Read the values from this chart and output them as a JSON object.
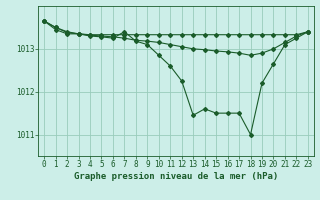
{
  "title": "Graphe pression niveau de la mer (hPa)",
  "background_color": "#cceee8",
  "grid_color": "#99ccbb",
  "line_color": "#1a5c2a",
  "series": [
    {
      "x": [
        0,
        1,
        2,
        3,
        4,
        5,
        6,
        7,
        8,
        9,
        10,
        11,
        12,
        13,
        14,
        15,
        16,
        17,
        18,
        19,
        20,
        21,
        22,
        23
      ],
      "y": [
        1013.65,
        1013.45,
        1013.35,
        1013.35,
        1013.33,
        1013.33,
        1013.33,
        1013.33,
        1013.33,
        1013.33,
        1013.33,
        1013.33,
        1013.33,
        1013.33,
        1013.33,
        1013.33,
        1013.33,
        1013.33,
        1013.33,
        1013.33,
        1013.33,
        1013.33,
        1013.33,
        1013.4
      ]
    },
    {
      "x": [
        0,
        1,
        2,
        3,
        4,
        5,
        6,
        7,
        8,
        9,
        10,
        11,
        12,
        13,
        14,
        15,
        16,
        17,
        18,
        19,
        20,
        21,
        22,
        23
      ],
      "y": [
        1013.65,
        1013.5,
        1013.4,
        1013.35,
        1013.32,
        1013.3,
        1013.28,
        1013.25,
        1013.2,
        1013.18,
        1013.15,
        1013.1,
        1013.05,
        1013.0,
        1012.98,
        1012.95,
        1012.93,
        1012.9,
        1012.85,
        1012.9,
        1013.0,
        1013.15,
        1013.3,
        1013.4
      ]
    },
    {
      "x": [
        0,
        1,
        2,
        3,
        4,
        5,
        6,
        7,
        8,
        9,
        10,
        11,
        12,
        13,
        14,
        15,
        16,
        17,
        18,
        19,
        20,
        21,
        22,
        23
      ],
      "y": [
        1013.65,
        1013.5,
        1013.38,
        1013.35,
        1013.3,
        1013.28,
        1013.25,
        1013.4,
        1013.18,
        1013.1,
        1012.85,
        1012.6,
        1012.25,
        1011.45,
        1011.6,
        1011.5,
        1011.5,
        1011.5,
        1011.0,
        1012.2,
        1012.65,
        1013.1,
        1013.25,
        1013.4
      ]
    }
  ],
  "ylim": [
    1010.5,
    1014.0
  ],
  "yticks": [
    1011,
    1012,
    1013
  ],
  "xlim": [
    -0.5,
    23.5
  ],
  "xticks": [
    0,
    1,
    2,
    3,
    4,
    5,
    6,
    7,
    8,
    9,
    10,
    11,
    12,
    13,
    14,
    15,
    16,
    17,
    18,
    19,
    20,
    21,
    22,
    23
  ],
  "tick_fontsize": 5.5,
  "title_fontsize": 6.5,
  "marker": "D",
  "markersize": 2.0,
  "linewidth": 0.8
}
